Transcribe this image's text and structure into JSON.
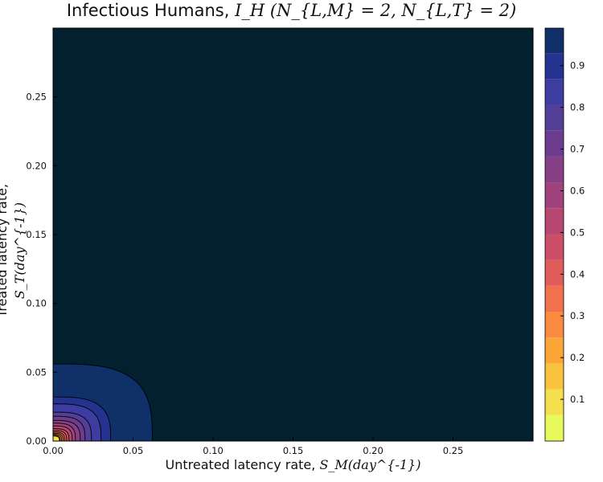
{
  "chart_data": {
    "type": "heatmap",
    "subtype": "filled-contour",
    "title_prefix": "Infectious Humans,",
    "title_math": "I_H (N_{L,M} = 2, N_{L,T} = 2)",
    "xlabel_text": "Untreated latency rate,",
    "xlabel_math": "S_M(day^{-1})",
    "ylabel_text": "Treated latency rate,",
    "ylabel_math": "S_T(day^{-1})",
    "xlim": [
      0,
      0.3
    ],
    "ylim": [
      0,
      0.3
    ],
    "xticks": [
      "0.00",
      "0.05",
      "0.10",
      "0.15",
      "0.20",
      "0.25"
    ],
    "yticks": [
      "0.00",
      "0.05",
      "0.10",
      "0.15",
      "0.20",
      "0.25"
    ],
    "colorbar": {
      "range": [
        0,
        0.99
      ],
      "ticks": [
        "0.1",
        "0.2",
        "0.3",
        "0.4",
        "0.5",
        "0.6",
        "0.7",
        "0.8",
        "0.9"
      ],
      "levels": [
        0,
        0.062,
        0.124,
        0.186,
        0.248,
        0.31,
        0.372,
        0.434,
        0.496,
        0.558,
        0.62,
        0.682,
        0.744,
        0.806,
        0.868,
        0.93,
        0.99
      ],
      "colors": [
        "#e8fa5b",
        "#f4e04f",
        "#f9c33f",
        "#fca63a",
        "#f98a40",
        "#ef714d",
        "#e05c5a",
        "#cc4e67",
        "#b74671",
        "#a0427b",
        "#874085",
        "#6c3d8e",
        "#533f98",
        "#3c3ca1",
        "#23338f",
        "#10306a",
        "#03202f"
      ]
    },
    "contours": [
      {
        "level": 0.93,
        "x_intercept": 0.062,
        "y_intercept": 0.056
      },
      {
        "level": 0.868,
        "x_intercept": 0.036,
        "y_intercept": 0.032
      },
      {
        "level": 0.806,
        "x_intercept": 0.03,
        "y_intercept": 0.027
      },
      {
        "level": 0.744,
        "x_intercept": 0.024,
        "y_intercept": 0.021
      },
      {
        "level": 0.682,
        "x_intercept": 0.02,
        "y_intercept": 0.018
      },
      {
        "level": 0.62,
        "x_intercept": 0.017,
        "y_intercept": 0.015
      },
      {
        "level": 0.558,
        "x_intercept": 0.014,
        "y_intercept": 0.013
      },
      {
        "level": 0.496,
        "x_intercept": 0.012,
        "y_intercept": 0.011
      },
      {
        "level": 0.434,
        "x_intercept": 0.01,
        "y_intercept": 0.009
      },
      {
        "level": 0.372,
        "x_intercept": 0.0085,
        "y_intercept": 0.0077
      },
      {
        "level": 0.31,
        "x_intercept": 0.0072,
        "y_intercept": 0.0066
      },
      {
        "level": 0.248,
        "x_intercept": 0.0062,
        "y_intercept": 0.0057
      },
      {
        "level": 0.186,
        "x_intercept": 0.0053,
        "y_intercept": 0.0049
      },
      {
        "level": 0.124,
        "x_intercept": 0.0045,
        "y_intercept": 0.0042
      },
      {
        "level": 0.062,
        "x_intercept": 0.004,
        "y_intercept": 0.0036
      }
    ]
  }
}
